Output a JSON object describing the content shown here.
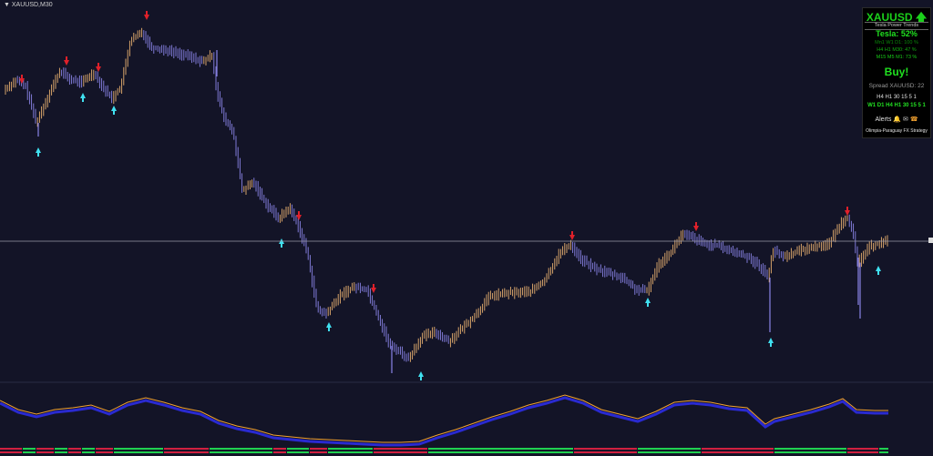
{
  "window": {
    "title": "XAUUSD,M30"
  },
  "colors": {
    "background": "#131427",
    "bull_candle": "#e8b070",
    "bear_candle": "#8a84e8",
    "sell_arrow": "#e0202a",
    "buy_arrow": "#40e0f0",
    "price_line": "#9a9aa8",
    "osc_orange": "#f0a030",
    "osc_blue": "#2a2ad0",
    "bar_green": "#20d050",
    "bar_red": "#d02040"
  },
  "panel": {
    "symbol": "XAUUSD",
    "direction_icon": "up-arrow-icon",
    "subtitle": "Tesla Power Trends",
    "tesla": "Tesla: 52%",
    "rows": [
      "Mn1 W1 D1: 100 %",
      "H4 H1 M30: 47 %",
      "M15 M5 M1: 73 %"
    ],
    "signal": "Buy!",
    "spread": "Spread XAUUSD: 22",
    "tf_row1": "H4 H1 30 15 5 1",
    "tf_row2": "W1 D1 H4 H1 30 15 5 1",
    "alerts_label": "Alerts",
    "alert_icons": [
      "bell-icon",
      "mail-icon",
      "phone-icon"
    ],
    "brand": "Olimpia-Paraguay FX Strategy"
  }
}
